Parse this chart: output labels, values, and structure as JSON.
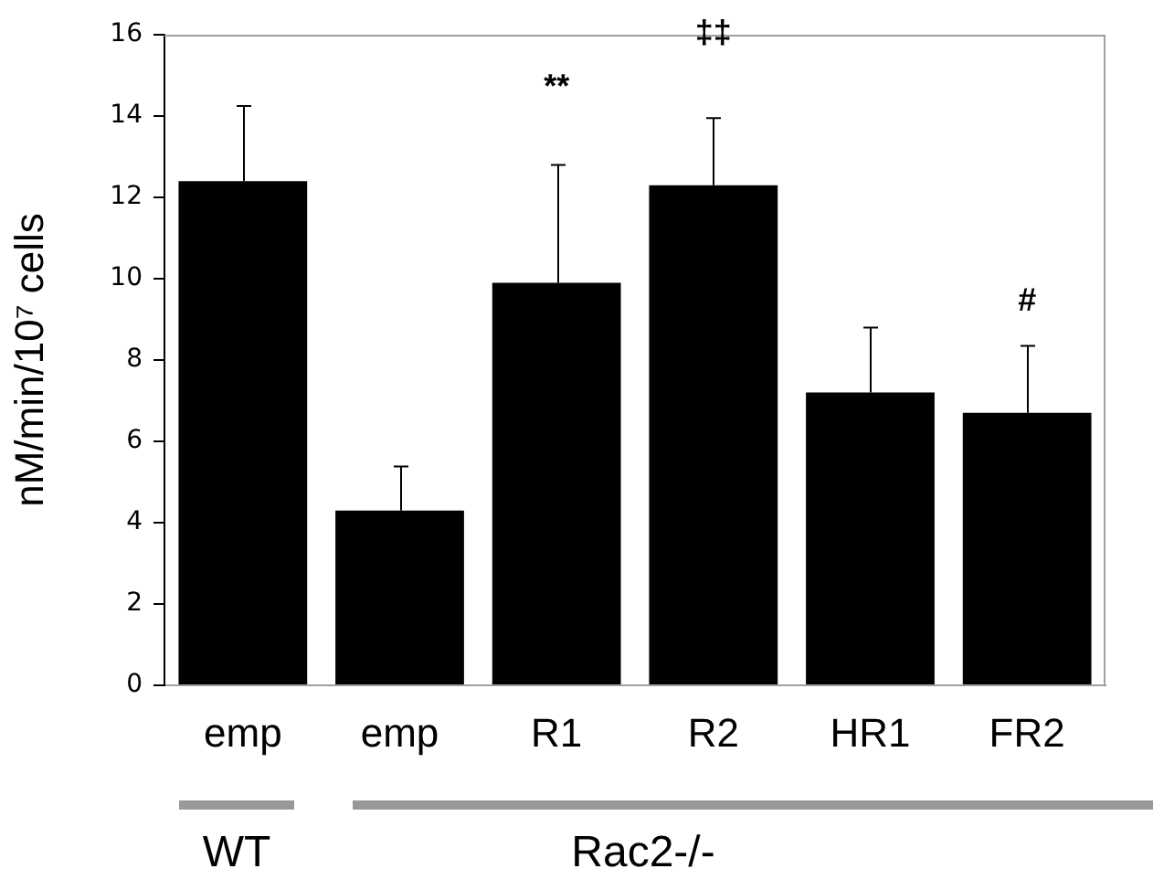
{
  "chart_data": {
    "type": "bar",
    "ylabel": "nM/min/10⁷ cells",
    "categories": [
      "emp",
      "emp",
      "R1",
      "R2",
      "HR1",
      "FR2"
    ],
    "values": [
      12.4,
      4.3,
      9.9,
      12.3,
      7.2,
      6.7
    ],
    "errors": [
      [
        12.4,
        14.25
      ],
      [
        4.3,
        5.38
      ],
      [
        9.9,
        12.8
      ],
      [
        12.3,
        13.95
      ],
      [
        7.2,
        8.8
      ],
      [
        6.7,
        8.35
      ]
    ],
    "color": "#000000",
    "ylim": [
      0,
      16
    ],
    "yticks": [
      0,
      2,
      4,
      6,
      8,
      10,
      12,
      14,
      16
    ],
    "grid": false,
    "annotations": [
      {
        "text": "**",
        "x": "R1",
        "y": 12.8
      },
      {
        "text": "‡‡",
        "x": "R2",
        "y": 13.95
      },
      {
        "text": "#",
        "x": "FR2",
        "y": 8.35
      },
      "WT",
      "Rac2-/-"
    ]
  }
}
